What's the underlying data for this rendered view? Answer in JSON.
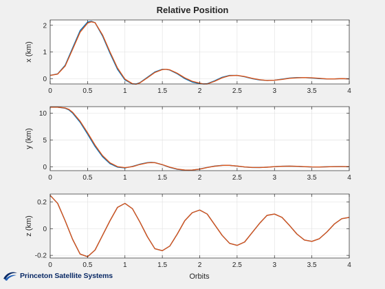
{
  "figure": {
    "title": "Relative Position",
    "xlabel": "Orbits",
    "logo_text": "Princeton Satellite Systems"
  },
  "colors": {
    "series_1": "#0072bd",
    "series_2": "#d95319",
    "background": "#f0f0f0",
    "axes_background": "#ffffff",
    "grid": "#dedede"
  },
  "chart_data": [
    {
      "type": "line",
      "ylabel": "x (km)",
      "xlim": [
        0,
        4
      ],
      "ylim": [
        -0.2,
        2.2
      ],
      "xticks": [
        0,
        0.5,
        1,
        1.5,
        2,
        2.5,
        3,
        3.5,
        4
      ],
      "xtick_labels": [
        "0",
        "0.5",
        "1",
        "1.5",
        "2",
        "2.5",
        "3",
        "3.5",
        "4"
      ],
      "yticks": [
        0,
        1,
        2
      ],
      "ytick_labels": [
        "0",
        "1",
        "2"
      ],
      "grid": true,
      "series": [
        {
          "color": "#0072bd",
          "x": [
            0,
            0.1,
            0.2,
            0.3,
            0.4,
            0.5,
            0.55,
            0.6,
            0.7,
            0.8,
            0.9,
            1.0,
            1.1,
            1.15,
            1.2,
            1.3,
            1.4,
            1.5,
            1.55,
            1.6,
            1.7,
            1.8,
            1.9,
            2.0,
            2.05,
            2.1,
            2.2,
            2.3,
            2.4,
            2.5,
            2.6,
            2.7,
            2.8,
            2.9,
            3.0,
            3.1,
            3.2,
            3.3,
            3.4,
            3.5,
            3.6,
            3.7,
            3.8,
            3.9,
            4.0
          ],
          "y": [
            0.12,
            0.18,
            0.5,
            1.15,
            1.8,
            2.12,
            2.15,
            2.1,
            1.6,
            0.95,
            0.35,
            -0.05,
            -0.2,
            -0.2,
            -0.15,
            0.05,
            0.25,
            0.35,
            0.35,
            0.32,
            0.18,
            0.0,
            -0.13,
            -0.19,
            -0.2,
            -0.19,
            -0.08,
            0.05,
            0.12,
            0.12,
            0.07,
            0.0,
            -0.05,
            -0.07,
            -0.06,
            -0.02,
            0.02,
            0.04,
            0.04,
            0.02,
            0.0,
            -0.01,
            -0.01,
            0.0,
            -0.01
          ]
        },
        {
          "color": "#d95319",
          "x": [
            0,
            0.1,
            0.2,
            0.3,
            0.4,
            0.5,
            0.55,
            0.6,
            0.7,
            0.8,
            0.9,
            1.0,
            1.1,
            1.15,
            1.2,
            1.3,
            1.4,
            1.5,
            1.55,
            1.6,
            1.7,
            1.8,
            1.9,
            2.0,
            2.05,
            2.1,
            2.2,
            2.3,
            2.4,
            2.5,
            2.6,
            2.7,
            2.8,
            2.9,
            3.0,
            3.1,
            3.2,
            3.3,
            3.4,
            3.5,
            3.6,
            3.7,
            3.8,
            3.9,
            4.0
          ],
          "y": [
            0.12,
            0.17,
            0.47,
            1.1,
            1.74,
            2.08,
            2.13,
            2.1,
            1.64,
            1.0,
            0.4,
            -0.02,
            -0.19,
            -0.21,
            -0.16,
            0.03,
            0.23,
            0.34,
            0.35,
            0.33,
            0.2,
            0.03,
            -0.1,
            -0.17,
            -0.2,
            -0.2,
            -0.1,
            0.03,
            0.11,
            0.12,
            0.08,
            0.01,
            -0.04,
            -0.07,
            -0.06,
            -0.03,
            0.01,
            0.03,
            0.04,
            0.03,
            0.01,
            -0.01,
            -0.01,
            0.0,
            -0.01
          ]
        }
      ]
    },
    {
      "type": "line",
      "ylabel": "y (km)",
      "xlim": [
        0,
        4
      ],
      "ylim": [
        -0.7,
        11.2
      ],
      "xticks": [
        0,
        0.5,
        1,
        1.5,
        2,
        2.5,
        3,
        3.5,
        4
      ],
      "xtick_labels": [
        "0",
        "0.5",
        "1",
        "1.5",
        "2",
        "2.5",
        "3",
        "3.5",
        "4"
      ],
      "yticks": [
        0,
        5,
        10
      ],
      "ytick_labels": [
        "0",
        "5",
        "10"
      ],
      "grid": true,
      "series": [
        {
          "color": "#0072bd",
          "x": [
            0,
            0.1,
            0.2,
            0.25,
            0.3,
            0.4,
            0.5,
            0.6,
            0.7,
            0.8,
            0.9,
            1.0,
            1.1,
            1.2,
            1.3,
            1.35,
            1.4,
            1.5,
            1.6,
            1.7,
            1.8,
            1.85,
            1.9,
            2.0,
            2.1,
            2.2,
            2.3,
            2.35,
            2.4,
            2.5,
            2.6,
            2.7,
            2.8,
            2.9,
            3.0,
            3.1,
            3.2,
            3.3,
            3.4,
            3.5,
            3.6,
            3.7,
            3.8,
            3.9,
            4.0
          ],
          "y": [
            11.1,
            11.1,
            10.9,
            10.6,
            10.0,
            8.3,
            6.1,
            3.8,
            1.9,
            0.6,
            -0.05,
            -0.2,
            0.1,
            0.5,
            0.8,
            0.85,
            0.8,
            0.4,
            -0.1,
            -0.45,
            -0.6,
            -0.62,
            -0.6,
            -0.4,
            -0.1,
            0.15,
            0.28,
            0.3,
            0.28,
            0.15,
            -0.02,
            -0.12,
            -0.12,
            -0.05,
            0.05,
            0.12,
            0.14,
            0.1,
            0.03,
            -0.02,
            -0.02,
            0.02,
            0.06,
            0.06,
            0.05
          ]
        },
        {
          "color": "#d95319",
          "x": [
            0,
            0.1,
            0.2,
            0.25,
            0.3,
            0.4,
            0.5,
            0.6,
            0.7,
            0.8,
            0.9,
            1.0,
            1.1,
            1.2,
            1.3,
            1.35,
            1.4,
            1.5,
            1.6,
            1.7,
            1.8,
            1.85,
            1.9,
            2.0,
            2.1,
            2.2,
            2.3,
            2.35,
            2.4,
            2.5,
            2.6,
            2.7,
            2.8,
            2.9,
            3.0,
            3.1,
            3.2,
            3.3,
            3.4,
            3.5,
            3.6,
            3.7,
            3.8,
            3.9,
            4.0
          ],
          "y": [
            11.1,
            11.1,
            10.95,
            10.7,
            10.15,
            8.5,
            6.35,
            4.05,
            2.1,
            0.75,
            0.05,
            -0.15,
            0.05,
            0.45,
            0.75,
            0.8,
            0.78,
            0.42,
            -0.05,
            -0.4,
            -0.58,
            -0.6,
            -0.58,
            -0.42,
            -0.12,
            0.12,
            0.27,
            0.3,
            0.28,
            0.16,
            0.0,
            -0.1,
            -0.12,
            -0.06,
            0.04,
            0.11,
            0.14,
            0.11,
            0.04,
            -0.01,
            -0.02,
            0.01,
            0.05,
            0.06,
            0.05
          ]
        }
      ]
    },
    {
      "type": "line",
      "ylabel": "z (km)",
      "xlim": [
        0,
        4
      ],
      "ylim": [
        -0.22,
        0.26
      ],
      "xticks": [
        0,
        0.5,
        1,
        1.5,
        2,
        2.5,
        3,
        3.5,
        4
      ],
      "xtick_labels": [
        "0",
        "0.5",
        "1",
        "1.5",
        "2",
        "2.5",
        "3",
        "3.5",
        "4"
      ],
      "yticks": [
        -0.2,
        0,
        0.2
      ],
      "ytick_labels": [
        "-0.2",
        "0",
        "0.2"
      ],
      "grid": true,
      "series": [
        {
          "color": "#0072bd",
          "x": [
            0,
            0.1,
            0.2,
            0.3,
            0.4,
            0.5,
            0.6,
            0.7,
            0.8,
            0.9,
            1.0,
            1.1,
            1.2,
            1.3,
            1.4,
            1.5,
            1.6,
            1.7,
            1.8,
            1.9,
            2.0,
            2.1,
            2.2,
            2.3,
            2.4,
            2.5,
            2.6,
            2.7,
            2.8,
            2.9,
            3.0,
            3.1,
            3.2,
            3.3,
            3.4,
            3.5,
            3.6,
            3.7,
            3.8,
            3.9,
            4.0
          ],
          "y": [
            0.25,
            0.19,
            0.06,
            -0.08,
            -0.19,
            -0.21,
            -0.16,
            -0.05,
            0.06,
            0.16,
            0.19,
            0.15,
            0.05,
            -0.06,
            -0.15,
            -0.165,
            -0.13,
            -0.04,
            0.06,
            0.12,
            0.14,
            0.11,
            0.03,
            -0.05,
            -0.11,
            -0.125,
            -0.1,
            -0.03,
            0.04,
            0.1,
            0.11,
            0.085,
            0.025,
            -0.04,
            -0.085,
            -0.095,
            -0.075,
            -0.025,
            0.035,
            0.075,
            0.085
          ]
        },
        {
          "color": "#d95319",
          "x": [
            0,
            0.1,
            0.2,
            0.3,
            0.4,
            0.5,
            0.6,
            0.7,
            0.8,
            0.9,
            1.0,
            1.1,
            1.2,
            1.3,
            1.4,
            1.5,
            1.6,
            1.7,
            1.8,
            1.9,
            2.0,
            2.1,
            2.2,
            2.3,
            2.4,
            2.5,
            2.6,
            2.7,
            2.8,
            2.9,
            3.0,
            3.1,
            3.2,
            3.3,
            3.4,
            3.5,
            3.6,
            3.7,
            3.8,
            3.9,
            4.0
          ],
          "y": [
            0.25,
            0.19,
            0.06,
            -0.08,
            -0.19,
            -0.21,
            -0.16,
            -0.05,
            0.06,
            0.16,
            0.19,
            0.15,
            0.05,
            -0.06,
            -0.15,
            -0.165,
            -0.13,
            -0.04,
            0.06,
            0.12,
            0.14,
            0.11,
            0.03,
            -0.05,
            -0.11,
            -0.125,
            -0.1,
            -0.03,
            0.04,
            0.1,
            0.11,
            0.085,
            0.025,
            -0.04,
            -0.085,
            -0.095,
            -0.075,
            -0.025,
            0.035,
            0.075,
            0.085
          ]
        }
      ]
    }
  ]
}
